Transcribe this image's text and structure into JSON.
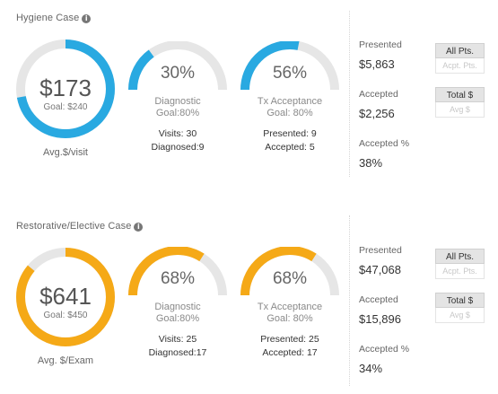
{
  "colors": {
    "hygiene_accent": "#29a9e1",
    "restorative_accent": "#f5a917",
    "track": "#e6e6e6"
  },
  "hygiene": {
    "title": "Hygiene Case",
    "info_icon": "info-icon",
    "avg_gauge": {
      "value": "$173",
      "goal": "Goal: $240",
      "caption": "Avg.$/visit",
      "fill_fraction": 0.72
    },
    "diagnostic": {
      "percent": "30%",
      "fill_fraction": 0.3,
      "label_line1": "Diagnostic",
      "label_line2": "Goal:80%",
      "stat1": "Visits: 30",
      "stat2": "Diagnosed:9"
    },
    "tx_acceptance": {
      "percent": "56%",
      "fill_fraction": 0.56,
      "label_line1": "Tx Acceptance",
      "label_line2": "Goal: 80%",
      "stat1": "Presented: 9",
      "stat2": "Accepted: 5"
    },
    "metrics": {
      "presented_label": "Presented",
      "presented_value": "$5,863",
      "accepted_label": "Accepted",
      "accepted_value": "$2,256",
      "accepted_pct_label": "Accepted %",
      "accepted_pct_value": "38%"
    },
    "buttons": {
      "all_pts": "All Pts.",
      "acpt_pts": "Acpt. Pts.",
      "total": "Total $",
      "avg": "Avg $"
    }
  },
  "restorative": {
    "title": "Restorative/Elective Case",
    "info_icon": "info-icon",
    "avg_gauge": {
      "value": "$641",
      "goal": "Goal: $450",
      "caption": "Avg. $/Exam",
      "fill_fraction": 0.86
    },
    "diagnostic": {
      "percent": "68%",
      "fill_fraction": 0.68,
      "label_line1": "Diagnostic",
      "label_line2": "Goal:80%",
      "stat1": "Visits: 25",
      "stat2": "Diagnosed:17"
    },
    "tx_acceptance": {
      "percent": "68%",
      "fill_fraction": 0.68,
      "label_line1": "Tx Acceptance",
      "label_line2": "Goal: 80%",
      "stat1": "Presented: 25",
      "stat2": "Accepted: 17"
    },
    "metrics": {
      "presented_label": "Presented",
      "presented_value": "$47,068",
      "accepted_label": "Accepted",
      "accepted_value": "$15,896",
      "accepted_pct_label": "Accepted %",
      "accepted_pct_value": "34%"
    },
    "buttons": {
      "all_pts": "All Pts.",
      "acpt_pts": "Acpt. Pts.",
      "total": "Total $",
      "avg": "Avg $"
    }
  }
}
